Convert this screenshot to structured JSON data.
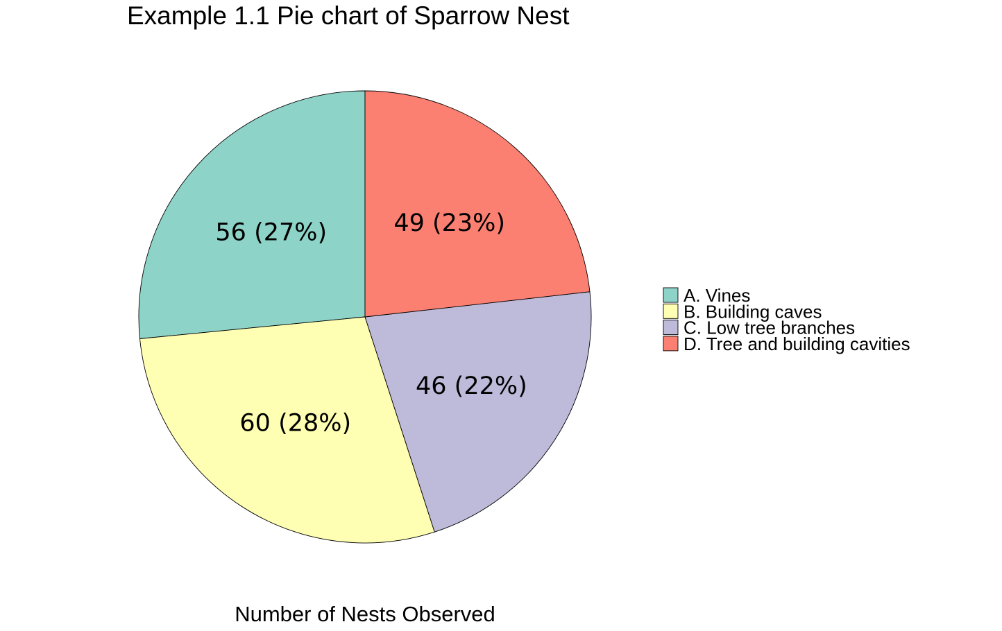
{
  "chart_data": {
    "type": "pie",
    "title": "Example 1.1 Pie chart of Sparrow Nest",
    "xlabel": "Number of Nests Observed",
    "ylabel": "",
    "start": "12 o'clock",
    "direction": "counterclockwise",
    "legend_position": "right",
    "slices": [
      {
        "name": "A. Vines",
        "value": 56,
        "label": "56  (27%)",
        "color": "#8ED3C7"
      },
      {
        "name": "B. Building caves",
        "value": 60,
        "label": "60  (28%)",
        "color": "#FFFFB3"
      },
      {
        "name": "C. Low tree branches",
        "value": 46,
        "label": "46  (22%)",
        "color": "#BEBADA"
      },
      {
        "name": "D. Tree and building cavities",
        "value": 49,
        "label": "49  (23%)",
        "color": "#FB8072"
      }
    ]
  }
}
